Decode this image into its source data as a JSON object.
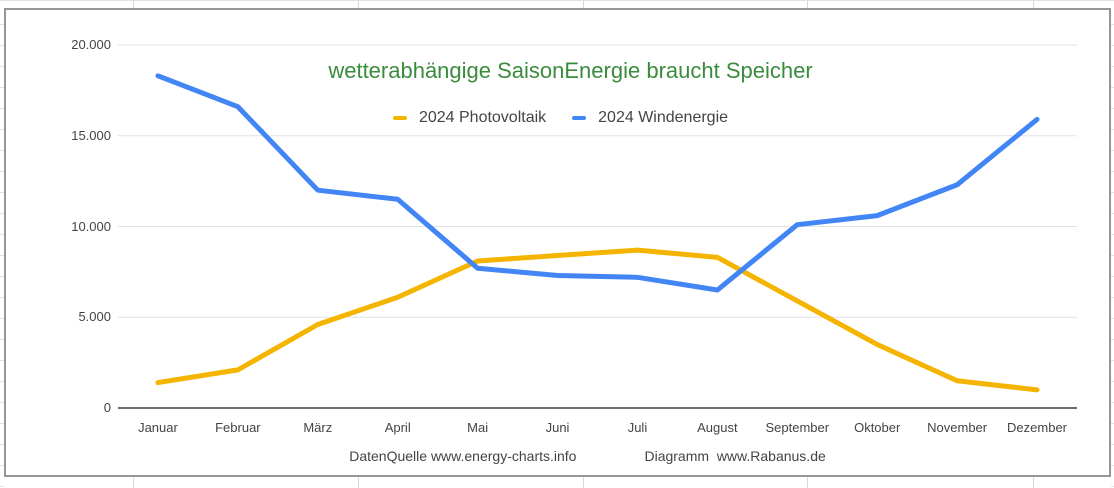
{
  "chart_data": {
    "type": "line",
    "title": "wetterabhängige SaisonEnergie braucht Speicher",
    "title_color": "#3a8c3d",
    "categories": [
      "Januar",
      "Februar",
      "März",
      "April",
      "Mai",
      "Juni",
      "Juli",
      "August",
      "September",
      "Oktober",
      "November",
      "Dezember"
    ],
    "series": [
      {
        "name": "2024 Photovoltaik",
        "color": "#f4b400",
        "values": [
          1400,
          2100,
          4600,
          6100,
          8100,
          8400,
          8700,
          8300,
          5900,
          3500,
          1500,
          1000
        ]
      },
      {
        "name": "2024 Windenergie",
        "color": "#4285f4",
        "values": [
          18300,
          16600,
          12000,
          11500,
          7700,
          7300,
          7200,
          6500,
          10100,
          10600,
          12300,
          15900
        ]
      }
    ],
    "ylim": [
      0,
      20000
    ],
    "yticks": [
      0,
      5000,
      10000,
      15000,
      20000
    ],
    "ytick_labels": [
      "0",
      "5.000",
      "10.000",
      "15.000",
      "20.000"
    ],
    "grid": true,
    "legend_position": "top",
    "xlabel": "",
    "ylabel": "",
    "source_note": "DatenQuelle www.energy-charts.info",
    "diagram_note": "Diagramm  www.Rabanus.de"
  },
  "colors": {
    "grid_line": "#e3e3e3",
    "axis_line": "#6d6d6d",
    "axis_text": "#444444",
    "chart_border": "#969696"
  }
}
